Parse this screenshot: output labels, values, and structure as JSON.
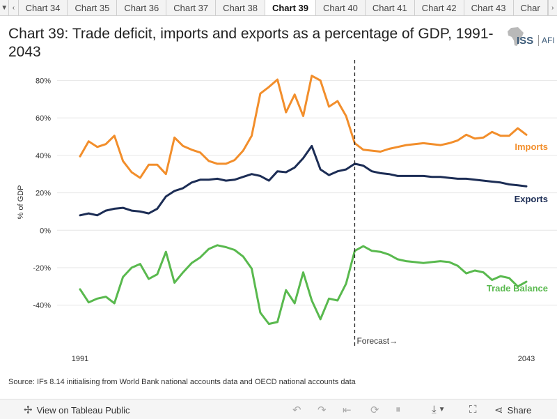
{
  "tabs": {
    "items": [
      "Chart 34",
      "Chart 35",
      "Chart 36",
      "Chart 37",
      "Chart 38",
      "Chart 39",
      "Chart 40",
      "Chart 41",
      "Chart 42",
      "Chart 43",
      "Char"
    ],
    "active": "Chart 39"
  },
  "title": "Chart 39: Trade deficit, imports and exports as a percentage of GDP, 1991-2043",
  "logo": {
    "iss": "ISS",
    "afi": "AFI"
  },
  "source": "Source: IFs 8.14 initialising from World Bank national accounts data and OECD national accounts data",
  "footer": {
    "view_label": "View on Tableau Public",
    "share_label": "Share"
  },
  "colors": {
    "imports": "#f28e2b",
    "exports": "#1c2d55",
    "trade_balance": "#59b94e",
    "grid": "#e6e6e6"
  },
  "chart_data": {
    "type": "line",
    "ylabel": "% of GDP",
    "ylim": [
      -55,
      85
    ],
    "y_ticks": [
      80,
      60,
      40,
      20,
      0,
      -20,
      -40
    ],
    "y_tick_labels": [
      "80%",
      "60%",
      "40%",
      "20%",
      "0%",
      "-20%",
      "-40%"
    ],
    "x_start_label": "1991",
    "x_end_label": "2043",
    "xlim": [
      1991,
      2043
    ],
    "forecast_year": 2023,
    "forecast_label": "Forecast→",
    "series": [
      {
        "name": "Imports",
        "key": "imports",
        "values": [
          [
            1991,
            39.5
          ],
          [
            1992,
            47.5
          ],
          [
            1993,
            44.5
          ],
          [
            1994,
            46
          ],
          [
            1995,
            50.5
          ],
          [
            1996,
            37
          ],
          [
            1997,
            31
          ],
          [
            1998,
            28
          ],
          [
            1999,
            35
          ],
          [
            2000,
            35
          ],
          [
            2001,
            30
          ],
          [
            2002,
            49.5
          ],
          [
            2003,
            45
          ],
          [
            2004,
            43
          ],
          [
            2005,
            41.5
          ],
          [
            2006,
            37
          ],
          [
            2007,
            35.5
          ],
          [
            2008,
            35.5
          ],
          [
            2009,
            37.5
          ],
          [
            2010,
            42.5
          ],
          [
            2011,
            50.5
          ],
          [
            2012,
            73
          ],
          [
            2013,
            76.5
          ],
          [
            2014,
            80.5
          ],
          [
            2015,
            63
          ],
          [
            2016,
            72.5
          ],
          [
            2017,
            61
          ],
          [
            2018,
            82.5
          ],
          [
            2019,
            80
          ],
          [
            2020,
            66
          ],
          [
            2021,
            69
          ],
          [
            2022,
            61
          ],
          [
            2023,
            46.5
          ],
          [
            2024,
            43
          ],
          [
            2025,
            42.5
          ],
          [
            2026,
            42
          ],
          [
            2027,
            43.5
          ],
          [
            2028,
            44.5
          ],
          [
            2029,
            45.5
          ],
          [
            2030,
            46
          ],
          [
            2031,
            46.5
          ],
          [
            2032,
            46
          ],
          [
            2033,
            45.5
          ],
          [
            2034,
            46.5
          ],
          [
            2035,
            48
          ],
          [
            2036,
            51
          ],
          [
            2037,
            49
          ],
          [
            2038,
            49.5
          ],
          [
            2039,
            52.5
          ],
          [
            2040,
            50.5
          ],
          [
            2041,
            50.5
          ],
          [
            2042,
            54.5
          ],
          [
            2043,
            51
          ]
        ]
      },
      {
        "name": "Exports",
        "key": "exports",
        "values": [
          [
            1991,
            8
          ],
          [
            1992,
            9
          ],
          [
            1993,
            8
          ],
          [
            1994,
            10.5
          ],
          [
            1995,
            11.5
          ],
          [
            1996,
            12
          ],
          [
            1997,
            10.5
          ],
          [
            1998,
            10
          ],
          [
            1999,
            9
          ],
          [
            2000,
            11.5
          ],
          [
            2001,
            18
          ],
          [
            2002,
            21
          ],
          [
            2003,
            22.5
          ],
          [
            2004,
            25.5
          ],
          [
            2005,
            27
          ],
          [
            2006,
            27
          ],
          [
            2007,
            27.5
          ],
          [
            2008,
            26.5
          ],
          [
            2009,
            27
          ],
          [
            2010,
            28.5
          ],
          [
            2011,
            30
          ],
          [
            2012,
            29
          ],
          [
            2013,
            26.5
          ],
          [
            2014,
            31.5
          ],
          [
            2015,
            31
          ],
          [
            2016,
            33.5
          ],
          [
            2017,
            38.5
          ],
          [
            2018,
            45
          ],
          [
            2019,
            32.5
          ],
          [
            2020,
            29.5
          ],
          [
            2021,
            31.5
          ],
          [
            2022,
            32.5
          ],
          [
            2023,
            35.5
          ],
          [
            2024,
            34.5
          ],
          [
            2025,
            31.5
          ],
          [
            2026,
            30.5
          ],
          [
            2027,
            30
          ],
          [
            2028,
            29
          ],
          [
            2029,
            29
          ],
          [
            2030,
            29
          ],
          [
            2031,
            29
          ],
          [
            2032,
            28.5
          ],
          [
            2033,
            28.5
          ],
          [
            2034,
            28
          ],
          [
            2035,
            27.5
          ],
          [
            2036,
            27.5
          ],
          [
            2037,
            27
          ],
          [
            2038,
            26.5
          ],
          [
            2039,
            26
          ],
          [
            2040,
            25.5
          ],
          [
            2041,
            24.5
          ],
          [
            2042,
            24
          ],
          [
            2043,
            23.5
          ]
        ]
      },
      {
        "name": "Trade Balance",
        "key": "trade_balance",
        "values": [
          [
            1991,
            -31.5
          ],
          [
            1992,
            -38.5
          ],
          [
            1993,
            -36.5
          ],
          [
            1994,
            -35.5
          ],
          [
            1995,
            -39
          ],
          [
            1996,
            -25
          ],
          [
            1997,
            -20
          ],
          [
            1998,
            -18
          ],
          [
            1999,
            -26
          ],
          [
            2000,
            -23.5
          ],
          [
            2001,
            -11.5
          ],
          [
            2002,
            -28
          ],
          [
            2003,
            -22.5
          ],
          [
            2004,
            -17.5
          ],
          [
            2005,
            -14.5
          ],
          [
            2006,
            -10
          ],
          [
            2007,
            -8
          ],
          [
            2008,
            -9
          ],
          [
            2009,
            -10.5
          ],
          [
            2010,
            -14
          ],
          [
            2011,
            -20.5
          ],
          [
            2012,
            -44
          ],
          [
            2013,
            -50
          ],
          [
            2014,
            -49
          ],
          [
            2015,
            -32
          ],
          [
            2016,
            -39
          ],
          [
            2017,
            -22.5
          ],
          [
            2018,
            -37.5
          ],
          [
            2019,
            -47.5
          ],
          [
            2020,
            -36.5
          ],
          [
            2021,
            -37.5
          ],
          [
            2022,
            -28.5
          ],
          [
            2023,
            -11
          ],
          [
            2024,
            -8.5
          ],
          [
            2025,
            -11
          ],
          [
            2026,
            -11.5
          ],
          [
            2027,
            -13
          ],
          [
            2028,
            -15.5
          ],
          [
            2029,
            -16.5
          ],
          [
            2030,
            -17
          ],
          [
            2031,
            -17.5
          ],
          [
            2032,
            -17
          ],
          [
            2033,
            -16.5
          ],
          [
            2034,
            -17
          ],
          [
            2035,
            -19
          ],
          [
            2036,
            -23
          ],
          [
            2037,
            -21.5
          ],
          [
            2038,
            -22.5
          ],
          [
            2039,
            -26.5
          ],
          [
            2040,
            -24.5
          ],
          [
            2041,
            -25.5
          ],
          [
            2042,
            -30
          ],
          [
            2043,
            -27.5
          ]
        ]
      }
    ]
  }
}
